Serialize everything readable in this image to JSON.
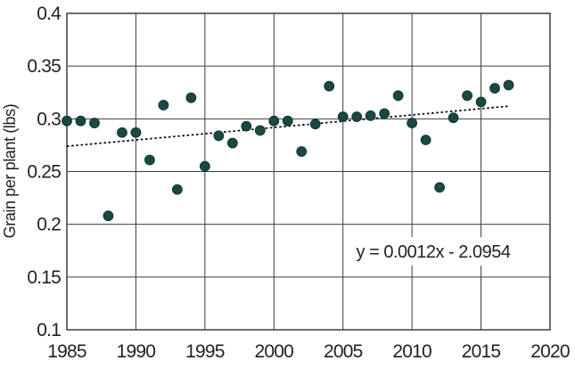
{
  "chart_data": {
    "type": "scatter",
    "title": "",
    "xlabel": "",
    "ylabel": "Grain per plant (lbs)",
    "xlim": [
      1985,
      2020
    ],
    "ylim": [
      0.1,
      0.4
    ],
    "x_tick_labels": [
      "1985",
      "1990",
      "1995",
      "2000",
      "2005",
      "2010",
      "2015",
      "2020"
    ],
    "y_tick_labels": [
      "0.1",
      "0.15",
      "0.2",
      "0.25",
      "0.3",
      "0.35",
      "0.4"
    ],
    "grid": true,
    "legend": false,
    "points": [
      [
        1985,
        0.298
      ],
      [
        1986,
        0.298
      ],
      [
        1987,
        0.296
      ],
      [
        1988,
        0.208
      ],
      [
        1989,
        0.287
      ],
      [
        1990,
        0.287
      ],
      [
        1991,
        0.261
      ],
      [
        1992,
        0.313
      ],
      [
        1993,
        0.233
      ],
      [
        1994,
        0.32
      ],
      [
        1995,
        0.255
      ],
      [
        1996,
        0.284
      ],
      [
        1997,
        0.277
      ],
      [
        1998,
        0.293
      ],
      [
        1999,
        0.289
      ],
      [
        2000,
        0.298
      ],
      [
        2001,
        0.298
      ],
      [
        2002,
        0.269
      ],
      [
        2003,
        0.295
      ],
      [
        2004,
        0.331
      ],
      [
        2005,
        0.302
      ],
      [
        2006,
        0.302
      ],
      [
        2007,
        0.303
      ],
      [
        2008,
        0.305
      ],
      [
        2009,
        0.322
      ],
      [
        2010,
        0.296
      ],
      [
        2011,
        0.28
      ],
      [
        2012,
        0.235
      ],
      [
        2013,
        0.301
      ],
      [
        2014,
        0.322
      ],
      [
        2015,
        0.316
      ],
      [
        2016,
        0.329
      ],
      [
        2017,
        0.332
      ]
    ],
    "trendline": {
      "style": "dashed",
      "x1": 1985,
      "y1": 0.274,
      "x2": 2017,
      "y2": 0.312,
      "label": "y = 0.0012x - 2.0954"
    },
    "colors": {
      "point": "#1b4842",
      "point_edge": "#103631",
      "grid": "#3d3d3d",
      "text": "#231f20",
      "trend": "#000000",
      "background": "#ffffff"
    }
  }
}
